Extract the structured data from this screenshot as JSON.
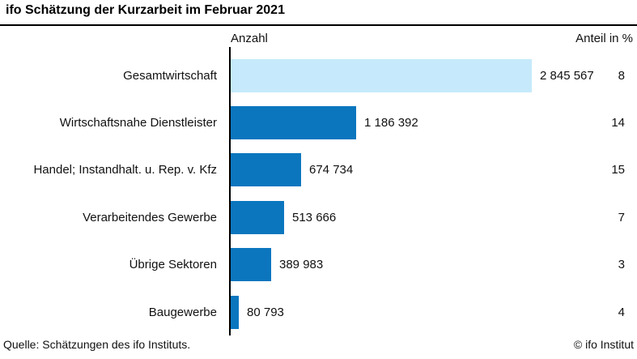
{
  "title": "ifo Schätzung der Kurzarbeit im Februar 2021",
  "header": {
    "left": "Anzahl",
    "right": "Anteil in %"
  },
  "footer": {
    "source": "Quelle: Schätzungen des ifo Instituts.",
    "copyright": "© ifo Institut"
  },
  "colors": {
    "bar": "#0b76be",
    "bar_highlight": "#c6eafb",
    "axis": "#000000",
    "text": "#111111"
  },
  "chart_data": {
    "type": "bar",
    "orientation": "horizontal",
    "title": "ifo Schätzung der Kurzarbeit im Februar 2021",
    "categories": [
      "Gesamtwirtschaft",
      "Wirtschaftsnahe Dienstleister",
      "Handel; Instandhalt. u. Rep. v. Kfz",
      "Verarbeitendes Gewerbe",
      "Übrige Sektoren",
      "Baugewerbe"
    ],
    "series": [
      {
        "name": "Anzahl",
        "values": [
          2845567,
          1186392,
          674734,
          513666,
          389983,
          80793
        ],
        "value_labels": [
          "2 845 567",
          "1 186 392",
          "674 734",
          "513 666",
          "389 983",
          "80 793"
        ]
      },
      {
        "name": "Anteil in %",
        "values": [
          8,
          14,
          15,
          7,
          3,
          4
        ]
      }
    ],
    "xlim": [
      0,
      2900000
    ],
    "grid": false,
    "legend": "none",
    "highlight_index": 0,
    "value_labels_shown": true
  }
}
